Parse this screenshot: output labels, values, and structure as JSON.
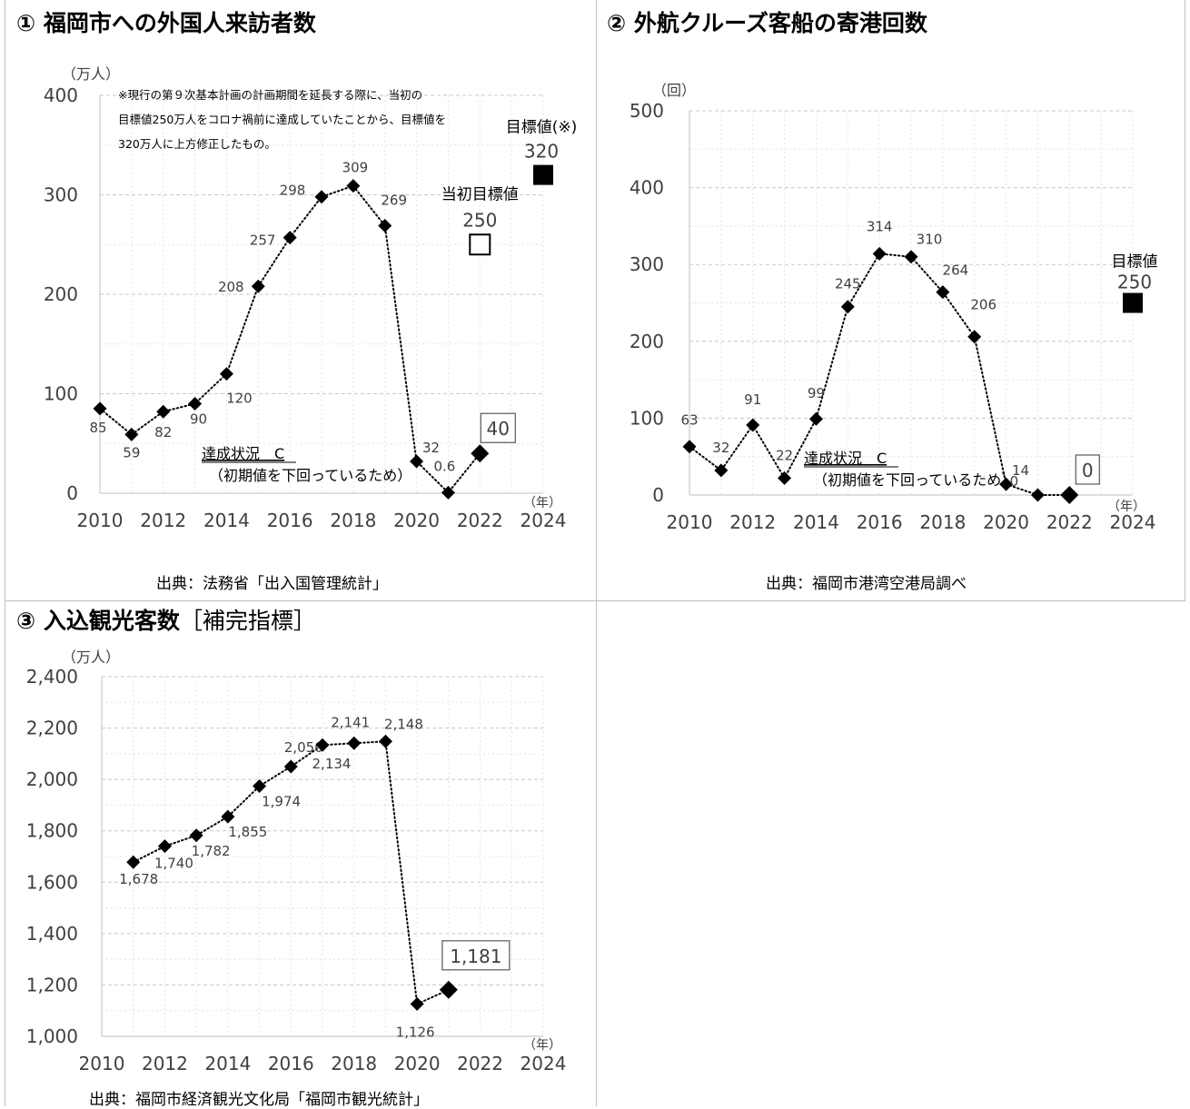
{
  "panels": [
    {
      "title_num": "①",
      "title": "福岡市への外国人来訪者数",
      "source": "出典：法務省「出入国管理統計」"
    },
    {
      "title_num": "②",
      "title": "外航クルーズ客船の寄港回数",
      "source": "出典：福岡市港湾空港局調べ"
    },
    {
      "title_num": "③",
      "title": "入込観光客数",
      "title_suffix": "［補完指標］",
      "source": "出典：福岡市経済観光文化局「福岡市観光統計」"
    }
  ],
  "chart_data": [
    {
      "type": "line",
      "ylabel": "（万人）",
      "xlabel": "（年）",
      "ylim": [
        0,
        400
      ],
      "yticks": [
        "0",
        "100",
        "200",
        "300",
        "400"
      ],
      "xlim": [
        2010,
        2024
      ],
      "xticks": [
        "2010",
        "2012",
        "2014",
        "2016",
        "2018",
        "2020",
        "2022",
        "2024"
      ],
      "grid": true,
      "note_lines": [
        "※現行の第９次基本計画の計画期間を延長する際に、当初の",
        "目標値250万人をコロナ禍前に達成していたことから、目標値を",
        "320万人に上方修正したもの。"
      ],
      "series": [
        {
          "x": [
            2010,
            2011,
            2012,
            2013,
            2014,
            2015,
            2016,
            2017,
            2018,
            2019,
            2020,
            2021,
            2022
          ],
          "values": [
            85,
            59,
            82,
            90,
            120,
            208,
            257,
            298,
            309,
            269,
            32,
            0.6,
            40
          ],
          "labels": [
            "85",
            "59",
            "82",
            "90",
            "120",
            "208",
            "257",
            "298",
            "309",
            "269",
            "32",
            "0.6",
            "40"
          ]
        }
      ],
      "targets": [
        {
          "label": "当初目標値",
          "value_label": "250",
          "x": 2022,
          "value": 250,
          "filled": false
        },
        {
          "label": "目標値(※)",
          "value_label": "320",
          "x": 2024,
          "value": 320,
          "filled": true
        }
      ],
      "status": "達成状況　C",
      "status_note": "（初期値を下回っているため）"
    },
    {
      "type": "line",
      "ylabel": "（回）",
      "xlabel": "（年）",
      "ylim": [
        0,
        500
      ],
      "yticks": [
        "0",
        "100",
        "200",
        "300",
        "400",
        "500"
      ],
      "xlim": [
        2010,
        2024
      ],
      "xticks": [
        "2010",
        "2012",
        "2014",
        "2016",
        "2018",
        "2020",
        "2022",
        "2024"
      ],
      "grid": true,
      "series": [
        {
          "x": [
            2010,
            2011,
            2012,
            2013,
            2014,
            2015,
            2016,
            2017,
            2018,
            2019,
            2020,
            2021,
            2022
          ],
          "values": [
            63,
            32,
            91,
            22,
            99,
            245,
            314,
            310,
            264,
            206,
            14,
            0,
            0
          ],
          "labels": [
            "63",
            "32",
            "91",
            "22",
            "99",
            "245",
            "314",
            "310",
            "264",
            "206",
            "14",
            "0",
            "0"
          ]
        }
      ],
      "targets": [
        {
          "label": "目標値",
          "value_label": "250",
          "x": 2024,
          "value": 250,
          "filled": true
        }
      ],
      "status": "達成状況　C",
      "status_note": "（初期値を下回っているため）"
    },
    {
      "type": "line",
      "ylabel": "（万人）",
      "xlabel": "（年）",
      "ylim": [
        1000,
        2400
      ],
      "yticks": [
        "1,000",
        "1,200",
        "1,400",
        "1,600",
        "1,800",
        "2,000",
        "2,200",
        "2,400"
      ],
      "xlim": [
        2010,
        2024
      ],
      "xticks": [
        "2010",
        "2012",
        "2014",
        "2016",
        "2018",
        "2020",
        "2022",
        "2024"
      ],
      "grid": true,
      "series": [
        {
          "x": [
            2011,
            2012,
            2013,
            2014,
            2015,
            2016,
            2017,
            2018,
            2019,
            2020,
            2021
          ],
          "values": [
            1678,
            1740,
            1782,
            1855,
            1974,
            2050,
            2134,
            2141,
            2148,
            1126,
            1181
          ],
          "labels": [
            "1,678",
            "1,740",
            "1,782",
            "1,855",
            "1,974",
            "2,050",
            "2,134",
            "2,141",
            "2,148",
            "1,126",
            "1,181"
          ]
        }
      ]
    }
  ]
}
